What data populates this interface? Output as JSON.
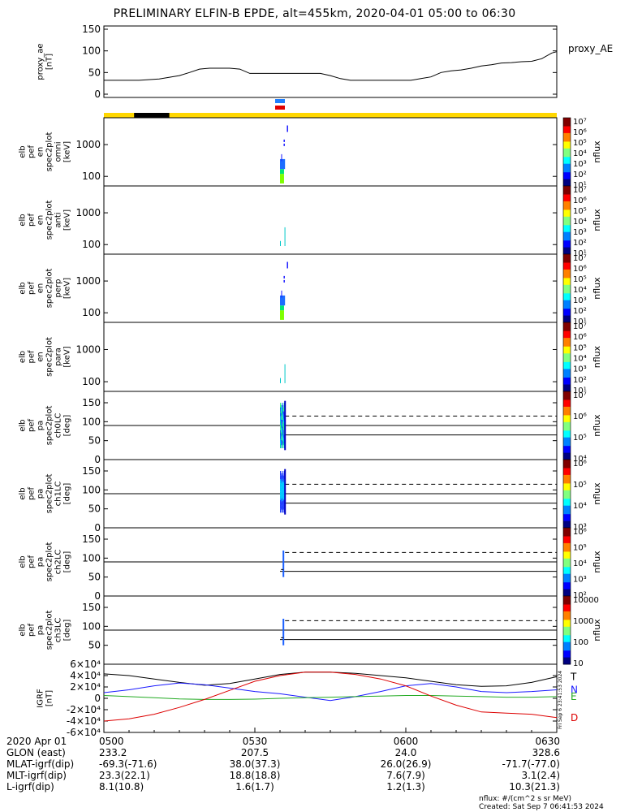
{
  "title": "PRELIMINARY ELFIN-B EPDE, alt=455km, 2020-04-01 05:00 to 06:30",
  "colors": {
    "ae_line": "#000000",
    "sci_zone": "#ffd700",
    "eclipse": "#000000",
    "marker_blue": "#1e7fff",
    "marker_red": "#e00000",
    "grf_T": "#000000",
    "grf_N": "#1a1aff",
    "grf_E": "#22aa22",
    "grf_D": "#dd0000"
  },
  "top_bar": {
    "segments": [
      {
        "kind": "science",
        "from": "05:00",
        "to": "06:30"
      },
      {
        "kind": "eclipse",
        "from": "05:06",
        "to": "05:13"
      }
    ],
    "markers": [
      {
        "color": "blue",
        "time": "05:35"
      },
      {
        "color": "red",
        "time": "05:35"
      }
    ]
  },
  "chart_data": [
    {
      "type": "line",
      "ylabel": [
        "proxy_ae",
        "[nT]"
      ],
      "legend": "proxy_AE",
      "ylim": [
        0,
        150
      ],
      "yticks": [
        "0",
        "50",
        "100",
        "150"
      ],
      "x": [
        "05:00",
        "05:07",
        "05:11",
        "05:15",
        "05:17",
        "05:19",
        "05:21",
        "05:23",
        "05:25",
        "05:27",
        "05:29",
        "05:31",
        "05:33",
        "05:35",
        "05:37",
        "05:39",
        "05:41",
        "05:43",
        "05:45",
        "05:47",
        "05:49",
        "05:51",
        "05:53",
        "05:55",
        "05:57",
        "05:59",
        "06:01",
        "06:03",
        "06:05",
        "06:07",
        "06:09",
        "06:11",
        "06:13",
        "06:15",
        "06:17",
        "06:19",
        "06:21",
        "06:23",
        "06:25",
        "06:27",
        "06:29",
        "06:30"
      ],
      "values": [
        32,
        32,
        35,
        43,
        50,
        58,
        60,
        60,
        60,
        58,
        48,
        48,
        48,
        48,
        48,
        48,
        48,
        48,
        43,
        36,
        32,
        32,
        32,
        32,
        32,
        32,
        32,
        36,
        40,
        50,
        54,
        56,
        60,
        65,
        68,
        72,
        73,
        75,
        76,
        82,
        95,
        98
      ]
    },
    {
      "type": "heatmap",
      "name": "elb pef en spec2plot omni [keV]",
      "ylabel": [
        "elb",
        "pef",
        "en",
        "spec2plot",
        "omni",
        "[keV]"
      ],
      "yscale": "log",
      "ylim": [
        50,
        7000
      ],
      "yticks": [
        "100",
        "1000"
      ],
      "colorbar": {
        "label": "nflux",
        "scale": "log",
        "ticks": [
          "10¹",
          "10²",
          "10³",
          "10⁴",
          "10⁵",
          "10⁶",
          "10⁷"
        ]
      },
      "data_window": [
        "05:35",
        "05:36"
      ],
      "fill": "spectra",
      "cells": [
        {
          "t0": "05:35",
          "t1": "05:35.8",
          "e0": 60,
          "e1": 120,
          "color": "#7fff00"
        },
        {
          "t0": "05:35",
          "t1": "05:35.8",
          "e0": 120,
          "e1": 170,
          "color": "#00e676"
        },
        {
          "t0": "05:35",
          "t1": "05:36",
          "e0": 170,
          "e1": 350,
          "color": "#1c6dff"
        }
      ]
    },
    {
      "type": "heatmap",
      "name": "elb pef en spec2plot anti [keV]",
      "ylabel": [
        "elb",
        "pef",
        "en",
        "spec2plot",
        "anti",
        "[keV]"
      ],
      "yscale": "log",
      "ylim": [
        50,
        7000
      ],
      "yticks": [
        "100",
        "1000"
      ],
      "colorbar": {
        "label": "nflux",
        "scale": "log",
        "ticks": [
          "10¹",
          "10²",
          "10³",
          "10⁴",
          "10⁵",
          "10⁶",
          "10⁷"
        ]
      },
      "data_window": [
        "05:35",
        "05:36"
      ],
      "fill": "sparse",
      "cells": [
        {
          "t0": "05:35",
          "t1": "05:35.1",
          "e0": 90,
          "e1": 130,
          "color": "#00c8c8"
        },
        {
          "t0": "05:35.9",
          "t1": "05:36",
          "e0": 90,
          "e1": 350,
          "color": "#00c8c8"
        }
      ]
    },
    {
      "type": "heatmap",
      "name": "elb pef en spec2plot perp [keV]",
      "ylabel": [
        "elb",
        "pef",
        "en",
        "spec2plot",
        "perp",
        "[keV]"
      ],
      "yscale": "log",
      "ylim": [
        50,
        7000
      ],
      "yticks": [
        "100",
        "1000"
      ],
      "colorbar": {
        "label": "nflux",
        "scale": "log",
        "ticks": [
          "10¹",
          "10²",
          "10³",
          "10⁴",
          "10⁵",
          "10⁶",
          "10⁷"
        ]
      },
      "data_window": [
        "05:35",
        "05:36"
      ],
      "fill": "spectra",
      "cells": [
        {
          "t0": "05:35",
          "t1": "05:35.8",
          "e0": 60,
          "e1": 120,
          "color": "#7fff00"
        },
        {
          "t0": "05:35",
          "t1": "05:35.8",
          "e0": 120,
          "e1": 170,
          "color": "#00e676"
        },
        {
          "t0": "05:35",
          "t1": "05:36",
          "e0": 170,
          "e1": 350,
          "color": "#1c6dff"
        }
      ]
    },
    {
      "type": "heatmap",
      "name": "elb pef en spec2plot para [keV]",
      "ylabel": [
        "elb",
        "pef",
        "en",
        "spec2plot",
        "para",
        "[keV]"
      ],
      "yscale": "log",
      "ylim": [
        50,
        7000
      ],
      "yticks": [
        "100",
        "1000"
      ],
      "colorbar": {
        "label": "nflux",
        "scale": "log",
        "ticks": [
          "10¹",
          "10²",
          "10³",
          "10⁴",
          "10⁵",
          "10⁶",
          "10⁷"
        ]
      },
      "data_window": [
        "05:35",
        "05:36"
      ],
      "fill": "sparse",
      "cells": [
        {
          "t0": "05:35",
          "t1": "05:35.1",
          "e0": 90,
          "e1": 130,
          "color": "#00c8c8"
        },
        {
          "t0": "05:35.9",
          "t1": "05:36",
          "e0": 90,
          "e1": 350,
          "color": "#00c8c8"
        }
      ]
    },
    {
      "type": "heatmap",
      "name": "elb pef pa spec2plot ch0LC [deg]",
      "ylabel": [
        "elb",
        "pef",
        "pa",
        "spec2plot",
        "ch0LC",
        "[deg]"
      ],
      "ylim": [
        0,
        180
      ],
      "yticks": [
        "0",
        "50",
        "100",
        "150"
      ],
      "colorbar": {
        "label": "nflux",
        "scale": "log",
        "ticks": [
          "10⁴",
          "10⁵",
          "10⁶",
          "10⁷"
        ]
      },
      "data_window": [
        "05:35",
        "05:36"
      ],
      "fill": "dense",
      "losscone_solid": 65,
      "antilosscone_dashed": 115,
      "pa90": 90
    },
    {
      "type": "heatmap",
      "name": "elb pef pa spec2plot ch1LC [deg]",
      "ylabel": [
        "elb",
        "pef",
        "pa",
        "spec2plot",
        "ch1LC",
        "[deg]"
      ],
      "ylim": [
        0,
        180
      ],
      "yticks": [
        "0",
        "50",
        "100",
        "150"
      ],
      "colorbar": {
        "label": "nflux",
        "scale": "log",
        "ticks": [
          "10³",
          "10⁴",
          "10⁵",
          "10⁶"
        ]
      },
      "data_window": [
        "05:35",
        "05:36"
      ],
      "fill": "medium",
      "losscone_solid": 65,
      "antilosscone_dashed": 115,
      "pa90": 90
    },
    {
      "type": "heatmap",
      "name": "elb pef pa spec2plot ch2LC [deg]",
      "ylabel": [
        "elb",
        "pef",
        "pa",
        "spec2plot",
        "ch2LC",
        "[deg]"
      ],
      "ylim": [
        0,
        180
      ],
      "yticks": [
        "0",
        "50",
        "100",
        "150"
      ],
      "colorbar": {
        "label": "nflux",
        "scale": "log",
        "ticks": [
          "10²",
          "10³",
          "10⁴",
          "10⁵",
          "10⁶"
        ]
      },
      "data_window": [
        "05:35",
        "05:36"
      ],
      "fill": "thin",
      "losscone_solid": 65,
      "antilosscone_dashed": 115,
      "pa90": 90
    },
    {
      "type": "heatmap",
      "name": "elb pef pa spec2plot ch3LC [deg]",
      "ylabel": [
        "elb",
        "pef",
        "pa",
        "spec2plot",
        "ch3LC",
        "[deg]"
      ],
      "ylim": [
        0,
        180
      ],
      "yticks": [
        "50",
        "100",
        "150"
      ],
      "colorbar": {
        "label": "nflux",
        "scale": "log",
        "ticks": [
          "10",
          "100",
          "1000",
          "10000"
        ]
      },
      "data_window": [
        "05:35",
        "05:36"
      ],
      "fill": "thin",
      "losscone_solid": 65,
      "antilosscone_dashed": 115,
      "pa90": 90
    },
    {
      "type": "line",
      "name": "IGRF",
      "ylabel": [
        "IGRF",
        "[nT]"
      ],
      "ylim": [
        -60000,
        60000
      ],
      "yticks": [
        "-6×10⁴",
        "-4×10⁴",
        "-2×10⁴",
        "0",
        "2×10⁴",
        "4×10⁴",
        "6×10⁴"
      ],
      "x": [
        "05:00",
        "05:05",
        "05:10",
        "05:15",
        "05:20",
        "05:25",
        "05:30",
        "05:35",
        "05:40",
        "05:45",
        "05:50",
        "05:55",
        "06:00",
        "06:05",
        "06:10",
        "06:15",
        "06:20",
        "06:25",
        "06:30"
      ],
      "series": [
        {
          "name": "T",
          "color": "#000000",
          "values": [
            43000,
            40000,
            34000,
            28000,
            23000,
            26000,
            34000,
            42000,
            46000,
            46000,
            44000,
            40000,
            36000,
            30000,
            24000,
            21000,
            22000,
            28000,
            38000
          ]
        },
        {
          "name": "N",
          "color": "#1a1aff",
          "values": [
            10000,
            15000,
            22000,
            27000,
            24000,
            18000,
            12000,
            8000,
            2000,
            -4000,
            3000,
            12000,
            22000,
            26000,
            20000,
            12000,
            10000,
            12000,
            15000
          ]
        },
        {
          "name": "E",
          "color": "#22aa22",
          "values": [
            5000,
            3000,
            1000,
            -1000,
            -2000,
            -2000,
            -1500,
            0,
            1000,
            2000,
            3000,
            4000,
            5000,
            5000,
            4000,
            3000,
            2000,
            2000,
            3000
          ]
        },
        {
          "name": "D",
          "color": "#dd0000",
          "values": [
            -40000,
            -36000,
            -28000,
            -16000,
            -2000,
            14000,
            30000,
            40000,
            46000,
            46000,
            42000,
            34000,
            22000,
            4000,
            -12000,
            -24000,
            -26000,
            -28000,
            -34000
          ]
        }
      ]
    }
  ],
  "timeaxis": {
    "rows": [
      {
        "label": "2020 Apr 01",
        "values": [
          "0500",
          "0530",
          "0600",
          "0630"
        ]
      },
      {
        "label": "GLON (east)",
        "values": [
          "233.2",
          "207.5",
          "24.0",
          "328.6"
        ]
      },
      {
        "label": "MLAT-igrf(dip)",
        "values": [
          "-69.3(-71.6)",
          "38.0(37.3)",
          "26.0(26.9)",
          "-71.7(-77.0)"
        ]
      },
      {
        "label": "MLT-igrf(dip)",
        "values": [
          "23.3(22.1)",
          "18.8(18.8)",
          "7.6(7.9)",
          "3.1(2.4)"
        ]
      },
      {
        "label": "L-igrf(dip)",
        "values": [
          "8.1(10.8)",
          "1.6(1.7)",
          "1.2(1.3)",
          "10.3(21.3)"
        ]
      }
    ]
  },
  "footer": {
    "units": "nflux: #/(cm^2 s sr MeV)",
    "created": "Created: Sat Sep  7 06:41:53 2024",
    "side_stamp": "Fri Sep  6 23:41:53 2024"
  }
}
